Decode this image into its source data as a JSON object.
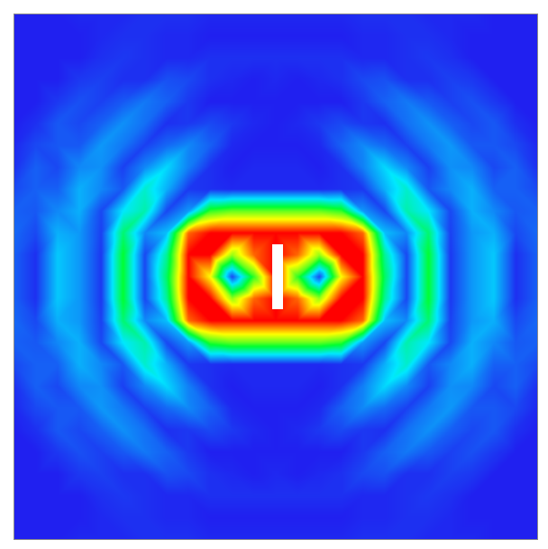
{
  "chart_data": {
    "type": "heatmap",
    "x": [
      -12,
      -11,
      -10,
      -9,
      -8,
      -7,
      -6,
      -5,
      -4,
      -3,
      -2,
      -1,
      0,
      1,
      2,
      3,
      4,
      5,
      6,
      7,
      8,
      9,
      10,
      11,
      12
    ],
    "y": [
      12,
      11,
      10,
      9,
      8,
      7,
      6,
      5,
      4,
      3,
      2,
      1,
      0,
      -1,
      -2,
      -3,
      -4,
      -5,
      -6,
      -7,
      -8,
      -9,
      -10,
      -11,
      -12
    ],
    "values": [
      [
        0.05,
        0.05,
        0.05,
        0.06,
        0.06,
        0.06,
        0.07,
        0.07,
        0.07,
        0.06,
        0.06,
        0.06,
        0.06,
        0.06,
        0.06,
        0.06,
        0.07,
        0.07,
        0.07,
        0.06,
        0.06,
        0.06,
        0.05,
        0.05,
        0.05
      ],
      [
        0.05,
        0.05,
        0.05,
        0.05,
        0.06,
        0.07,
        0.07,
        0.06,
        0.06,
        0.05,
        0.05,
        0.05,
        0.05,
        0.05,
        0.05,
        0.05,
        0.06,
        0.06,
        0.07,
        0.07,
        0.06,
        0.05,
        0.05,
        0.05,
        0.05
      ],
      [
        0.05,
        0.05,
        0.05,
        0.05,
        0.07,
        0.08,
        0.07,
        0.06,
        0.06,
        0.07,
        0.07,
        0.07,
        0.07,
        0.07,
        0.07,
        0.07,
        0.06,
        0.06,
        0.07,
        0.08,
        0.07,
        0.05,
        0.05,
        0.05,
        0.05
      ],
      [
        0.05,
        0.05,
        0.05,
        0.08,
        0.09,
        0.07,
        0.07,
        0.11,
        0.1,
        0.07,
        0.06,
        0.05,
        0.06,
        0.05,
        0.06,
        0.07,
        0.1,
        0.11,
        0.07,
        0.07,
        0.09,
        0.08,
        0.05,
        0.05,
        0.05
      ],
      [
        0.05,
        0.05,
        0.08,
        0.11,
        0.09,
        0.12,
        0.16,
        0.13,
        0.08,
        0.05,
        0.05,
        0.05,
        0.05,
        0.05,
        0.05,
        0.05,
        0.08,
        0.13,
        0.16,
        0.12,
        0.09,
        0.11,
        0.08,
        0.05,
        0.05
      ],
      [
        0.05,
        0.07,
        0.12,
        0.1,
        0.13,
        0.19,
        0.15,
        0.07,
        0.08,
        0.1,
        0.08,
        0.06,
        0.05,
        0.06,
        0.08,
        0.1,
        0.08,
        0.07,
        0.15,
        0.19,
        0.13,
        0.1,
        0.12,
        0.07,
        0.05
      ],
      [
        0.06,
        0.1,
        0.12,
        0.12,
        0.2,
        0.16,
        0.09,
        0.14,
        0.18,
        0.13,
        0.06,
        0.05,
        0.05,
        0.05,
        0.06,
        0.13,
        0.18,
        0.14,
        0.09,
        0.16,
        0.2,
        0.12,
        0.12,
        0.1,
        0.06
      ],
      [
        0.07,
        0.13,
        0.1,
        0.18,
        0.19,
        0.09,
        0.18,
        0.28,
        0.17,
        0.07,
        0.05,
        0.06,
        0.06,
        0.06,
        0.05,
        0.07,
        0.17,
        0.28,
        0.18,
        0.09,
        0.19,
        0.18,
        0.1,
        0.13,
        0.07
      ],
      [
        0.1,
        0.13,
        0.13,
        0.23,
        0.18,
        0.12,
        0.35,
        0.23,
        0.08,
        0.07,
        0.06,
        0.06,
        0.06,
        0.06,
        0.06,
        0.07,
        0.08,
        0.23,
        0.35,
        0.12,
        0.18,
        0.23,
        0.13,
        0.13,
        0.1
      ],
      [
        0.13,
        0.12,
        0.18,
        0.23,
        0.1,
        0.3,
        0.38,
        0.1,
        0.2,
        0.55,
        0.6,
        0.6,
        0.6,
        0.6,
        0.6,
        0.55,
        0.2,
        0.1,
        0.38,
        0.3,
        0.1,
        0.23,
        0.18,
        0.12,
        0.13
      ],
      [
        0.14,
        0.1,
        0.23,
        0.2,
        0.09,
        0.44,
        0.18,
        0.25,
        0.9,
        1,
        1,
        1,
        1,
        1,
        1,
        1,
        0.9,
        0.25,
        0.18,
        0.44,
        0.09,
        0.2,
        0.23,
        0.1,
        0.14
      ],
      [
        0.13,
        0.07,
        0.26,
        0.2,
        0.08,
        0.5,
        0.1,
        0.4,
        1,
        1,
        0.65,
        0.9,
        1,
        0.9,
        0.65,
        1,
        1,
        0.4,
        0.1,
        0.5,
        0.08,
        0.2,
        0.26,
        0.07,
        0.13
      ],
      [
        0.13,
        0.07,
        0.26,
        0.2,
        0.08,
        0.5,
        0.1,
        0.45,
        1,
        0.75,
        0.1,
        0.55,
        1,
        0.55,
        0.1,
        0.75,
        1,
        0.45,
        0.1,
        0.5,
        0.08,
        0.2,
        0.26,
        0.07,
        0.13
      ],
      [
        0.13,
        0.07,
        0.26,
        0.2,
        0.08,
        0.5,
        0.1,
        0.4,
        1,
        1,
        0.65,
        0.9,
        1,
        0.9,
        0.65,
        1,
        1,
        0.4,
        0.1,
        0.5,
        0.08,
        0.2,
        0.26,
        0.07,
        0.13
      ],
      [
        0.14,
        0.1,
        0.23,
        0.2,
        0.09,
        0.44,
        0.18,
        0.25,
        0.9,
        1,
        1,
        1,
        1,
        1,
        1,
        1,
        0.9,
        0.25,
        0.18,
        0.44,
        0.09,
        0.2,
        0.23,
        0.1,
        0.14
      ],
      [
        0.13,
        0.12,
        0.18,
        0.23,
        0.1,
        0.3,
        0.38,
        0.1,
        0.2,
        0.55,
        0.6,
        0.6,
        0.6,
        0.6,
        0.6,
        0.55,
        0.2,
        0.1,
        0.38,
        0.3,
        0.1,
        0.23,
        0.18,
        0.12,
        0.13
      ],
      [
        0.1,
        0.13,
        0.13,
        0.23,
        0.18,
        0.12,
        0.35,
        0.23,
        0.08,
        0.07,
        0.06,
        0.06,
        0.06,
        0.06,
        0.06,
        0.07,
        0.08,
        0.23,
        0.35,
        0.12,
        0.18,
        0.23,
        0.13,
        0.13,
        0.1
      ],
      [
        0.07,
        0.13,
        0.1,
        0.18,
        0.19,
        0.09,
        0.18,
        0.28,
        0.17,
        0.07,
        0.05,
        0.06,
        0.06,
        0.06,
        0.05,
        0.07,
        0.17,
        0.28,
        0.18,
        0.09,
        0.19,
        0.18,
        0.1,
        0.13,
        0.07
      ],
      [
        0.06,
        0.1,
        0.12,
        0.12,
        0.2,
        0.16,
        0.09,
        0.14,
        0.18,
        0.13,
        0.06,
        0.05,
        0.05,
        0.05,
        0.06,
        0.13,
        0.18,
        0.14,
        0.09,
        0.16,
        0.2,
        0.12,
        0.12,
        0.1,
        0.06
      ],
      [
        0.05,
        0.07,
        0.12,
        0.1,
        0.13,
        0.19,
        0.15,
        0.07,
        0.08,
        0.1,
        0.08,
        0.06,
        0.05,
        0.06,
        0.08,
        0.1,
        0.08,
        0.07,
        0.15,
        0.19,
        0.13,
        0.1,
        0.12,
        0.07,
        0.05
      ],
      [
        0.05,
        0.05,
        0.08,
        0.11,
        0.09,
        0.12,
        0.16,
        0.13,
        0.08,
        0.05,
        0.05,
        0.05,
        0.05,
        0.05,
        0.05,
        0.05,
        0.08,
        0.13,
        0.16,
        0.12,
        0.09,
        0.11,
        0.08,
        0.05,
        0.05
      ],
      [
        0.05,
        0.05,
        0.05,
        0.08,
        0.09,
        0.07,
        0.07,
        0.11,
        0.1,
        0.07,
        0.06,
        0.05,
        0.06,
        0.05,
        0.06,
        0.07,
        0.1,
        0.11,
        0.07,
        0.07,
        0.09,
        0.08,
        0.05,
        0.05,
        0.05
      ],
      [
        0.05,
        0.05,
        0.05,
        0.05,
        0.07,
        0.08,
        0.07,
        0.06,
        0.06,
        0.07,
        0.07,
        0.07,
        0.07,
        0.07,
        0.07,
        0.07,
        0.06,
        0.06,
        0.07,
        0.08,
        0.07,
        0.05,
        0.05,
        0.05,
        0.05
      ],
      [
        0.05,
        0.05,
        0.05,
        0.05,
        0.06,
        0.07,
        0.07,
        0.06,
        0.06,
        0.05,
        0.05,
        0.05,
        0.05,
        0.05,
        0.05,
        0.05,
        0.06,
        0.06,
        0.07,
        0.07,
        0.06,
        0.05,
        0.05,
        0.05,
        0.05
      ],
      [
        0.05,
        0.05,
        0.05,
        0.06,
        0.06,
        0.06,
        0.07,
        0.07,
        0.07,
        0.06,
        0.06,
        0.06,
        0.06,
        0.06,
        0.06,
        0.06,
        0.07,
        0.07,
        0.07,
        0.06,
        0.06,
        0.06,
        0.05,
        0.05,
        0.05
      ]
    ],
    "zlim": [
      0,
      1
    ],
    "xlim": [
      -12,
      12
    ],
    "ylim": [
      -12,
      12
    ],
    "tick_labels": false
  }
}
